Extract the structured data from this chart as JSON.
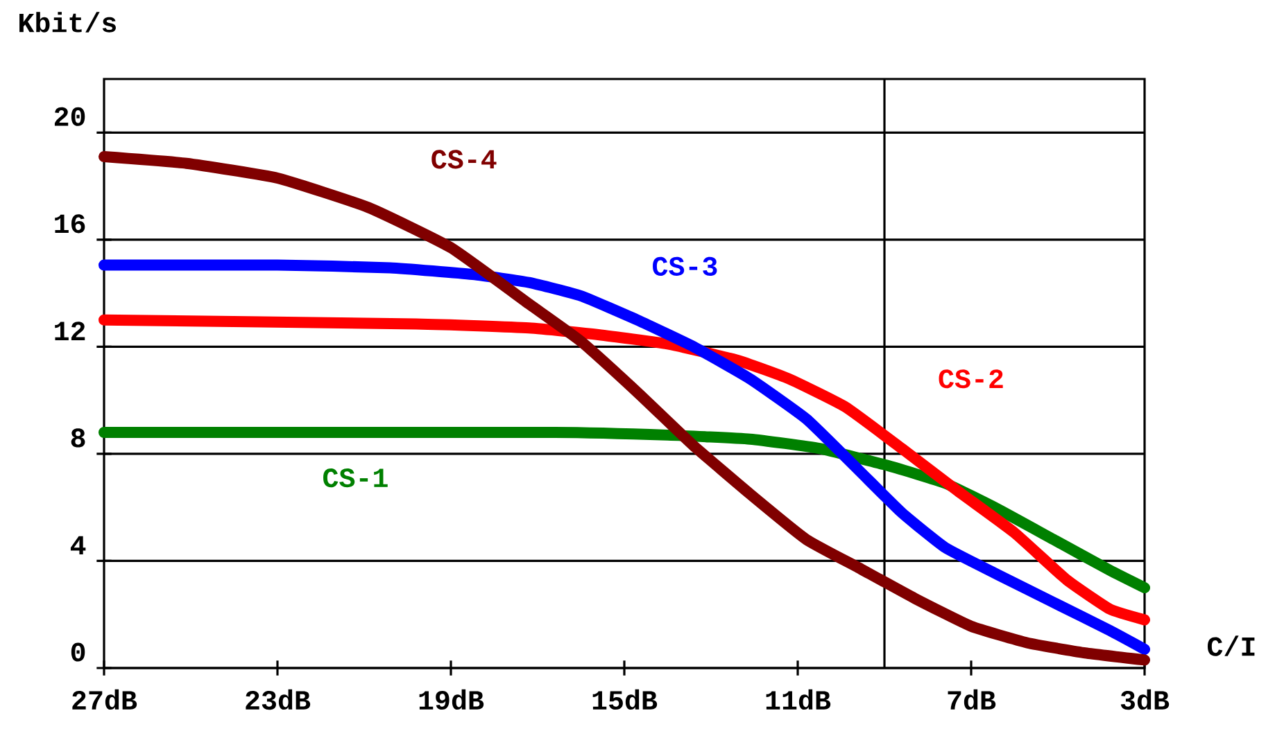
{
  "chart_data": {
    "type": "line",
    "xlabel": "C/I",
    "ylabel": "Kbit/s",
    "xlim": [
      27,
      3
    ],
    "xticks": [
      {
        "value": 27,
        "label": "27dB"
      },
      {
        "value": 23,
        "label": "23dB"
      },
      {
        "value": 19,
        "label": "19dB"
      },
      {
        "value": 15,
        "label": "15dB"
      },
      {
        "value": 11,
        "label": "11dB"
      },
      {
        "value": 7,
        "label": "7dB"
      },
      {
        "value": 3,
        "label": "3dB"
      }
    ],
    "ylim": [
      0,
      22
    ],
    "yticks": [
      0,
      4,
      8,
      12,
      16,
      20
    ],
    "grid": "y",
    "marker": "none",
    "line_style": "solid",
    "ref_lines": [
      {
        "axis": "x",
        "value": 9,
        "color": "#000000"
      }
    ],
    "series": [
      {
        "name": "CS-1",
        "color": "#008000",
        "x": [
          27,
          16.6,
          14,
          12.1,
          10.5,
          8.9,
          7.6,
          6.4,
          5.1,
          3.8,
          3
        ],
        "values": [
          8.8,
          8.8,
          8.7,
          8.55,
          8.2,
          7.55,
          6.9,
          5.95,
          4.8,
          3.65,
          3.0
        ]
      },
      {
        "name": "CS-2",
        "color": "#ff0000",
        "x": [
          27,
          19.8,
          17.2,
          15.6,
          14,
          12.4,
          11.2,
          9.9,
          8.6,
          7.3,
          6,
          4.8,
          3.8,
          3
        ],
        "values": [
          13.0,
          12.85,
          12.7,
          12.45,
          12.1,
          11.5,
          10.8,
          9.75,
          8.2,
          6.6,
          5.05,
          3.3,
          2.2,
          1.8
        ]
      },
      {
        "name": "CS-3",
        "color": "#0000ff",
        "x": [
          27,
          23,
          20.4,
          18.5,
          17.2,
          16,
          14.7,
          13.4,
          12.1,
          10.8,
          9.6,
          8.6,
          7.6,
          6.4,
          5.1,
          3.8,
          3
        ],
        "values": [
          15.05,
          15.05,
          14.95,
          14.7,
          14.4,
          13.9,
          13.0,
          12.0,
          10.8,
          9.3,
          7.4,
          5.8,
          4.5,
          3.5,
          2.45,
          1.4,
          0.7
        ]
      },
      {
        "name": "CS-4",
        "color": "#800000",
        "x": [
          27,
          25.1,
          23,
          20.9,
          19,
          17.2,
          16,
          14.7,
          13.4,
          12.1,
          10.8,
          9.6,
          8.3,
          7,
          5.7,
          4.4,
          3
        ],
        "values": [
          19.1,
          18.85,
          18.3,
          17.2,
          15.7,
          13.6,
          12.2,
          10.3,
          8.3,
          6.5,
          4.8,
          3.75,
          2.6,
          1.56,
          0.94,
          0.57,
          0.3
        ]
      }
    ]
  }
}
